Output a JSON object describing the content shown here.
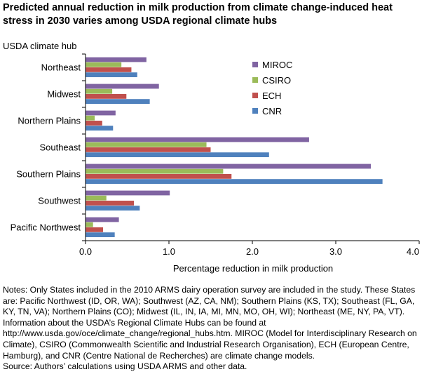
{
  "chart_data": {
    "type": "bar",
    "orientation": "horizontal",
    "title": "Predicted annual reduction in milk production from climate change-induced heat stress in 2030 varies among USDA regional climate hubs",
    "ylabel": "USDA climate hub",
    "xlabel": "Percentage reduction in milk production",
    "categories": [
      "Northeast",
      "Midwest",
      "Northern Plains",
      "Southeast",
      "Southern Plains",
      "Southwest",
      "Pacific Northwest"
    ],
    "series": [
      {
        "name": "MIROC",
        "color": "#8064a2",
        "values": [
          0.73,
          0.88,
          0.36,
          2.68,
          3.42,
          1.01,
          0.4
        ]
      },
      {
        "name": "CSIRO",
        "color": "#9bbb59",
        "values": [
          0.43,
          0.32,
          0.11,
          1.45,
          1.65,
          0.25,
          0.09
        ]
      },
      {
        "name": "ECH",
        "color": "#c0504d",
        "values": [
          0.55,
          0.49,
          0.2,
          1.5,
          1.75,
          0.58,
          0.21
        ]
      },
      {
        "name": "CNR",
        "color": "#4f81bd",
        "values": [
          0.62,
          0.77,
          0.33,
          2.2,
          3.56,
          0.65,
          0.35
        ]
      }
    ],
    "xlim": [
      0,
      4.0
    ],
    "xticks": [
      "0.0",
      "1.0",
      "2.0",
      "3.0",
      "4.0"
    ],
    "grid": false,
    "legend_position": "upper-right"
  },
  "notes": [
    "Notes: Only States included in the 2010 ARMS dairy operation survey are included in the study. These States are: Pacific Northwest (ID, OR, WA); Southwest (AZ, CA, NM); Southern Plains (KS, TX); Southeast (FL, GA, KY, TN, VA); Northern Plains (CO); Midwest (IL, IN, IA, MI, MN, MO, OH, WI); Northeast (ME, NY, PA, VT). Information about the USDA’s Regional Climate Hubs can be found at http://www.usda.gov/oce/climate_change/regional_hubs.htm. MIROC (Model for Interdisciplinary Research on Climate), CSIRO (Commonwealth Scientific and Industrial Research Organisation), ECH (European Centre, Hamburg), and CNR (Centre National de Recherches) are climate change models.",
    "Source: Authors’ calculations using USDA ARMS and other data."
  ]
}
